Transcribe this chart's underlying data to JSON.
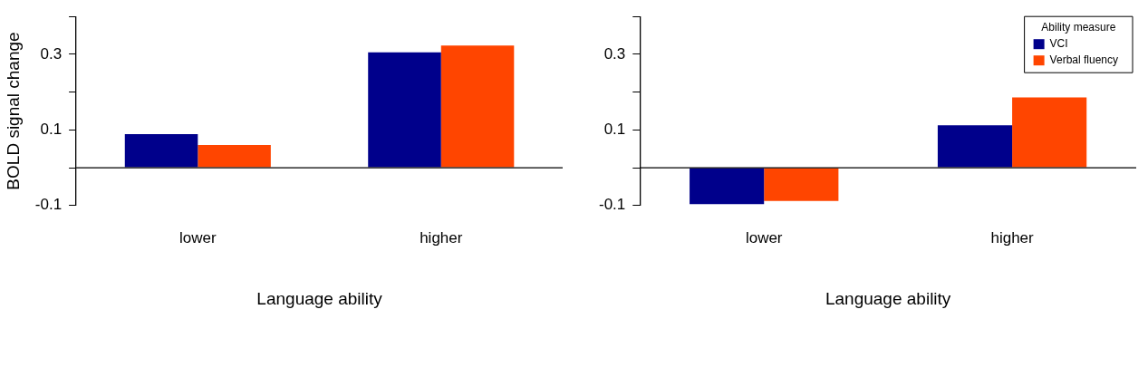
{
  "chart_data": [
    {
      "type": "bar",
      "ylabel": "BOLD signal change",
      "xlabel": "Language ability",
      "categories": [
        "lower",
        "higher"
      ],
      "series": [
        {
          "color": "#00008b",
          "values": [
            0.089,
            0.305
          ]
        },
        {
          "color": "#ff4500",
          "values": [
            0.06,
            0.323
          ]
        }
      ],
      "ylim": [
        -0.1,
        0.4
      ],
      "yticks": [
        -0.1,
        {
          "value": 0,
          "label": null
        },
        0.1,
        {
          "value": 0.2,
          "label": null
        },
        0.3,
        {
          "value": 0.4,
          "label": null
        }
      ],
      "ref_lines": [
        {
          "axis": "y",
          "value": 0,
          "color": "#000000"
        }
      ],
      "grid": false,
      "legend": false
    },
    {
      "type": "bar",
      "xlabel": "Language ability",
      "categories": [
        "lower",
        "higher"
      ],
      "legend_title": "Ability measure",
      "series": [
        {
          "name": "VCI",
          "color": "#00008b",
          "values": [
            -0.096,
            0.112
          ]
        },
        {
          "name": "Verbal fluency",
          "color": "#ff4500",
          "values": [
            -0.088,
            0.186
          ]
        }
      ],
      "ylim": [
        -0.1,
        0.4
      ],
      "yticks": [
        -0.1,
        {
          "value": 0,
          "label": null
        },
        0.1,
        {
          "value": 0.2,
          "label": null
        },
        0.3,
        {
          "value": 0.4,
          "label": null
        }
      ],
      "ref_lines": [
        {
          "axis": "y",
          "value": 0,
          "color": "#000000"
        }
      ],
      "grid": false,
      "legend": "top right"
    }
  ]
}
